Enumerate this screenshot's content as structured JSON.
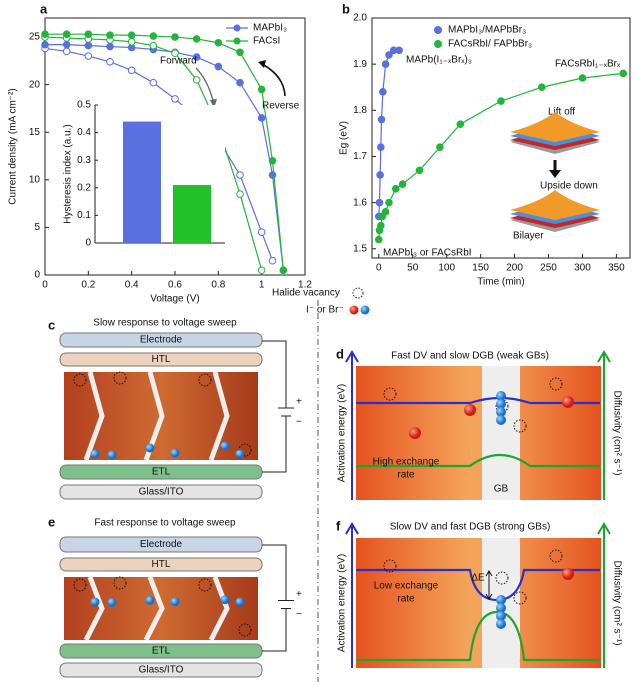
{
  "figure": {
    "panel_labels": [
      "a",
      "b",
      "c",
      "d",
      "e",
      "f"
    ]
  },
  "chart_data": [
    {
      "type": "line",
      "x_label": "Voltage (V)",
      "y_label": "Current density (mA cm⁻²)",
      "x": [
        0,
        0.1,
        0.2,
        0.3,
        0.4,
        0.5,
        0.6,
        0.7,
        0.8,
        0.9,
        1.0,
        1.05,
        1.1
      ],
      "xlim": [
        0,
        1.2
      ],
      "xticks": [
        0,
        0.2,
        0.4,
        0.6,
        0.8,
        1,
        1.2
      ],
      "ylim": [
        0,
        27
      ],
      "yticks": [
        0,
        5,
        10,
        15,
        20,
        25
      ],
      "legend": "upper right",
      "series": [
        {
          "name": "MAPbI₃",
          "color": "#5a6fe0",
          "values": [
            24.2,
            24.2,
            24.1,
            24.0,
            23.9,
            23.7,
            23.4,
            22.9,
            21.9,
            20.2,
            16.5,
            10.5,
            0.5
          ],
          "forward_values": [
            23.8,
            23.5,
            23.0,
            22.4,
            21.5,
            20.2,
            18.5,
            16.5,
            14.2,
            10.5,
            4.5,
            1.5,
            null
          ]
        },
        {
          "name": "FACsI",
          "color": "#22b53a",
          "values": [
            25.3,
            25.3,
            25.3,
            25.2,
            25.2,
            25.1,
            25.0,
            24.8,
            24.4,
            23.4,
            19.5,
            12.0,
            0.5
          ],
          "forward_values": [
            25.0,
            24.9,
            24.8,
            24.7,
            24.5,
            24.1,
            23.3,
            20.5,
            15.5,
            8.5,
            0.5,
            null,
            null
          ]
        }
      ],
      "annotations": {
        "forward": "Forward",
        "reverse": "Reverse"
      }
    },
    {
      "type": "bar",
      "y_label": "Hysteresis index (a.u.)",
      "values": [
        0.44,
        0.21
      ],
      "colors": [
        "#5a6fe0",
        "#22c02a"
      ],
      "ylim": [
        0,
        0.5
      ],
      "yticks": [
        0,
        0.1,
        0.2,
        0.3,
        0.4,
        0.5
      ]
    },
    {
      "type": "scatter",
      "x_label": "Time (min)",
      "y_label": "Eg (eV)",
      "xlim": [
        -10,
        370
      ],
      "xticks": [
        0,
        50,
        100,
        150,
        200,
        250,
        300,
        350
      ],
      "ylim": [
        1.48,
        2.0
      ],
      "yticks": [
        1.5,
        1.6,
        1.7,
        1.8,
        1.9,
        {
          "value": 2,
          "label": "2.0"
        }
      ],
      "legend": "upper center",
      "series": [
        {
          "name": "MAPbI₃/MAPbBr₃",
          "color": "#5a6fe0",
          "x": [
            0,
            1,
            2,
            3,
            4,
            6,
            10,
            15,
            22,
            30
          ],
          "values": [
            1.57,
            1.6,
            1.66,
            1.72,
            1.78,
            1.84,
            1.9,
            1.92,
            1.93,
            1.93
          ]
        },
        {
          "name": "FACsRbI/ FAPbBr₃",
          "color": "#22b53a",
          "x": [
            0,
            1,
            3,
            5,
            10,
            15,
            25,
            35,
            60,
            90,
            120,
            180,
            240,
            300,
            360
          ],
          "values": [
            1.52,
            1.54,
            1.55,
            1.57,
            1.58,
            1.6,
            1.63,
            1.64,
            1.67,
            1.72,
            1.77,
            1.82,
            1.85,
            1.87,
            1.88
          ]
        }
      ],
      "annotations": {
        "mapb": "MAPb(I₁₋ₓBrₓ)₃",
        "facs": "FACsRbI₁₋ₓBrₓ",
        "start": "MAPbI₃ or FACsRbI",
        "lift": "Lift off",
        "upside": "Upside down",
        "bilayer": "Bilayer"
      }
    }
  ],
  "diagrams": {
    "legend": {
      "vacancy": "Halide vacancy",
      "ion": "I⁻ or Br⁻"
    },
    "c": {
      "title": "Slow response to voltage sweep",
      "layers": [
        "Electrode",
        "HTL",
        "ETL",
        "Glass/ITO"
      ]
    },
    "e": {
      "title": "Fast response to voltage sweep",
      "layers": [
        "Electrode",
        "HTL",
        "ETL",
        "Glass/ITO"
      ]
    },
    "d": {
      "title": "Fast DV and slow DGB (weak GBs)",
      "left_axis": "Activation energy (eV)",
      "right_axis": "Diffusivity (cm² s⁻¹)",
      "rate": [
        "High exchange",
        "rate"
      ],
      "gb": "GB"
    },
    "f": {
      "title": "Slow DV and fast DGB (strong GBs)",
      "left_axis": "Activation energy (eV)",
      "right_axis": "Diffusivity (cm² s⁻¹)",
      "rate": [
        "Low exchange",
        "rate"
      ],
      "delta": "ΔE"
    },
    "battery": [
      "+",
      "−"
    ]
  }
}
